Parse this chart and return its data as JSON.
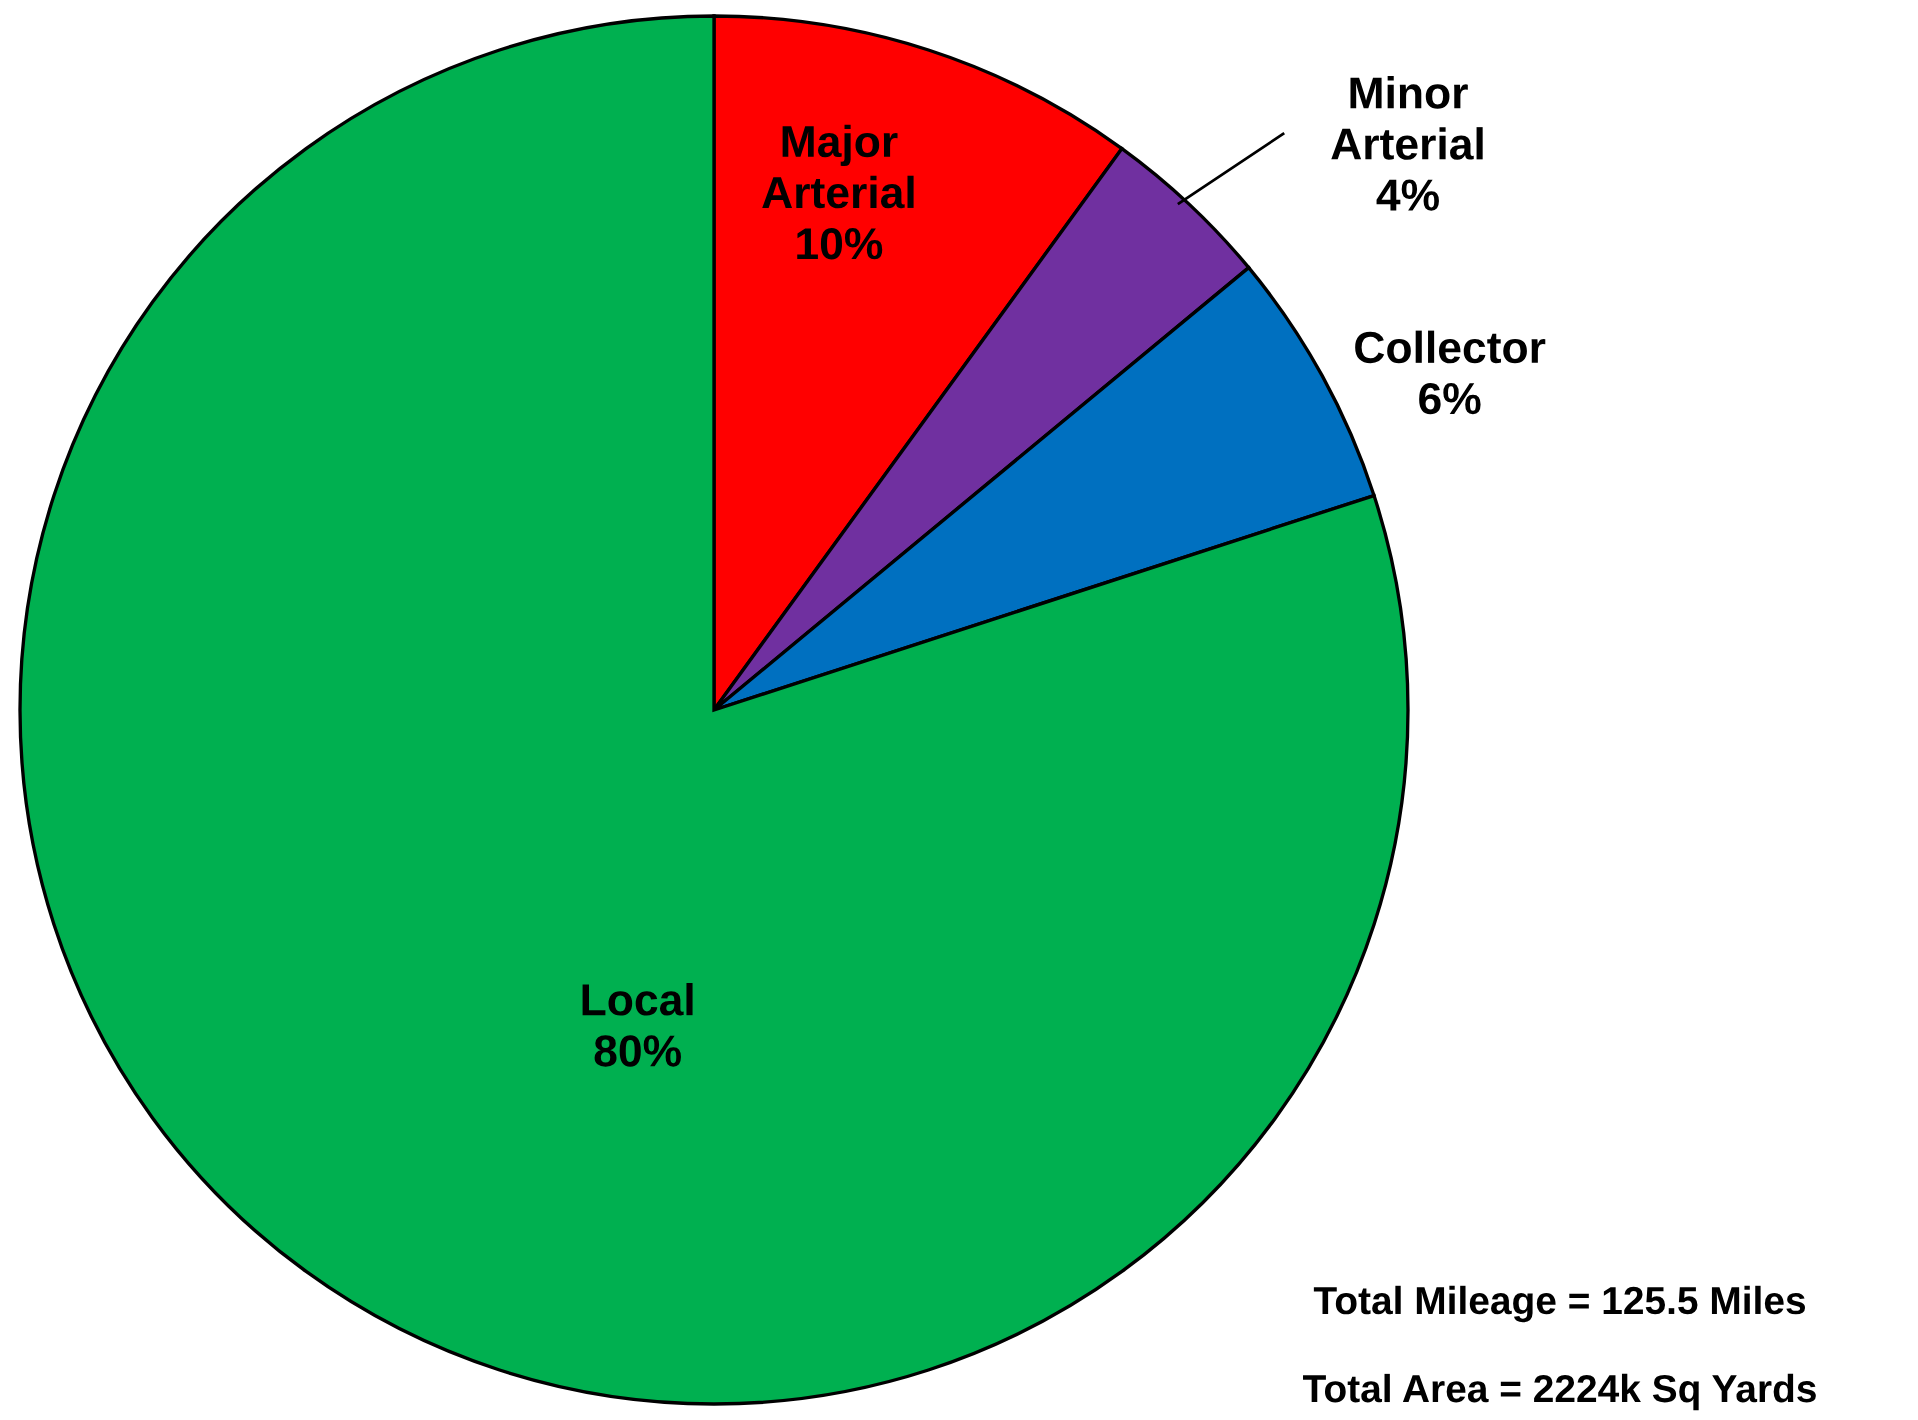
{
  "chart_data": {
    "type": "pie",
    "categories": [
      "Major Arterial",
      "Minor Arterial",
      "Collector",
      "Local"
    ],
    "values": [
      10,
      4,
      6,
      80
    ],
    "colors": [
      "#ff0000",
      "#7030a0",
      "#0070c0",
      "#00b050"
    ],
    "value_labels": [
      "10%",
      "4%",
      "6%",
      "80%"
    ],
    "annotations": [
      "Total Mileage = 125.5 Miles",
      "Total Area = 2224k Sq Yards"
    ]
  }
}
